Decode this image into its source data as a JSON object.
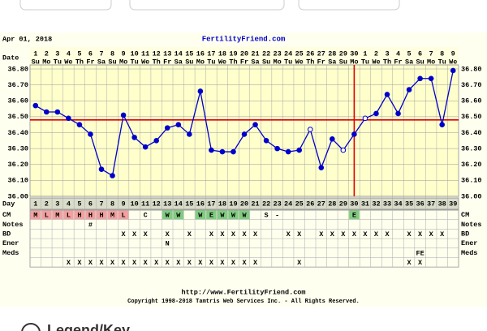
{
  "chart_data": {
    "type": "line",
    "title": "FertilityFriend.com",
    "start_date": "Apr 01, 2018",
    "date_label": "Date",
    "day_label": "Day",
    "dates": [
      1,
      2,
      3,
      4,
      5,
      6,
      7,
      8,
      9,
      10,
      11,
      12,
      13,
      14,
      15,
      16,
      17,
      18,
      19,
      20,
      21,
      22,
      23,
      24,
      25,
      26,
      27,
      28,
      29,
      30,
      1,
      2,
      3,
      4,
      5,
      6,
      7,
      8,
      9
    ],
    "weekdays": [
      "Su",
      "Mo",
      "Tu",
      "We",
      "Th",
      "Fr",
      "Sa",
      "Su",
      "Mo",
      "Tu",
      "We",
      "Th",
      "Fr",
      "Sa",
      "Su",
      "Mo",
      "Tu",
      "We",
      "Th",
      "Fr",
      "Sa",
      "Su",
      "Mo",
      "Tu",
      "We",
      "Th",
      "Fr",
      "Sa",
      "Su",
      "Mo",
      "Tu",
      "We",
      "Th",
      "Fr",
      "Sa",
      "Su",
      "Mo",
      "Tu",
      "We"
    ],
    "categories": [
      1,
      2,
      3,
      4,
      5,
      6,
      7,
      8,
      9,
      10,
      11,
      12,
      13,
      14,
      15,
      16,
      17,
      18,
      19,
      20,
      21,
      22,
      23,
      24,
      25,
      26,
      27,
      28,
      29,
      30,
      31,
      32,
      33,
      34,
      35,
      36,
      37,
      38,
      39
    ],
    "series": [
      {
        "color": "#0000cc",
        "values": [
          36.57,
          36.53,
          36.53,
          36.49,
          36.45,
          36.39,
          36.17,
          36.13,
          36.51,
          36.37,
          36.31,
          36.35,
          36.43,
          36.45,
          36.39,
          36.66,
          36.29,
          36.28,
          36.28,
          36.39,
          36.45,
          36.35,
          36.3,
          36.28,
          36.29,
          36.42,
          36.18,
          36.36,
          36.29,
          36.39,
          36.49,
          36.52,
          36.64,
          36.52,
          36.67,
          36.74,
          36.74,
          36.45,
          36.79
        ],
        "open_markers": [
          26,
          29,
          31
        ]
      }
    ],
    "ylim": [
      36.0,
      36.8
    ],
    "yticks": [
      {
        "value": 36.0,
        "label": "36.00"
      },
      {
        "value": 36.1,
        "label": "36.10"
      },
      {
        "value": 36.2,
        "label": "36.20"
      },
      {
        "value": 36.3,
        "label": "36.30"
      },
      {
        "value": 36.4,
        "label": "36.40"
      },
      {
        "value": 36.5,
        "label": "36.50"
      },
      {
        "value": 36.6,
        "label": "36.60"
      },
      {
        "value": 36.7,
        "label": "36.70"
      },
      {
        "value": 36.8,
        "label": "36.80"
      }
    ],
    "grid": true,
    "coverline": 36.48,
    "coverline_color": "#dd0000",
    "ovulation_day": 30,
    "rows": [
      {
        "label": "CM",
        "cells": [
          "M",
          "L",
          "M",
          "L",
          "H",
          "H",
          "H",
          "M",
          "L",
          null,
          "C",
          null,
          "W",
          "W",
          null,
          "W",
          "E",
          "W",
          "W",
          "W",
          null,
          "S",
          "-",
          null,
          null,
          null,
          null,
          null,
          null,
          "E",
          null,
          null,
          null,
          null,
          null,
          null,
          null,
          null,
          null
        ]
      },
      {
        "label": "Notes",
        "cells": [
          null,
          null,
          null,
          null,
          null,
          "#",
          null,
          null,
          null,
          null,
          null,
          null,
          null,
          null,
          null,
          null,
          null,
          null,
          null,
          null,
          null,
          null,
          null,
          null,
          null,
          null,
          null,
          null,
          null,
          null,
          null,
          null,
          null,
          null,
          null,
          null,
          null,
          null,
          null
        ]
      },
      {
        "label": "BD",
        "cells": [
          null,
          null,
          null,
          null,
          null,
          null,
          null,
          null,
          "X",
          "X",
          "X",
          null,
          "X",
          null,
          "X",
          null,
          "X",
          "X",
          "X",
          "X",
          "X",
          null,
          null,
          "X",
          "X",
          null,
          "X",
          "X",
          "X",
          "X",
          "X",
          "X",
          "X",
          null,
          "X",
          "X",
          "X",
          "X",
          null
        ]
      },
      {
        "label": "Ener",
        "cells": [
          null,
          null,
          null,
          null,
          null,
          null,
          null,
          null,
          null,
          null,
          null,
          null,
          "N",
          null,
          null,
          null,
          null,
          null,
          null,
          null,
          null,
          null,
          null,
          null,
          null,
          null,
          null,
          null,
          null,
          null,
          null,
          null,
          null,
          null,
          null,
          null,
          null,
          null,
          null
        ]
      },
      {
        "label": "Meds",
        "cells": [
          null,
          null,
          null,
          null,
          null,
          null,
          null,
          null,
          null,
          null,
          null,
          null,
          null,
          null,
          null,
          null,
          null,
          null,
          null,
          null,
          null,
          null,
          null,
          null,
          null,
          null,
          null,
          null,
          null,
          null,
          null,
          null,
          null,
          null,
          null,
          "FE",
          null,
          null,
          null
        ]
      },
      {
        "label": null,
        "cells": [
          null,
          null,
          null,
          "X",
          "X",
          "X",
          "X",
          "X",
          "X",
          "X",
          "X",
          "X",
          "X",
          "X",
          "X",
          "X",
          "X",
          "X",
          "X",
          "X",
          "X",
          null,
          null,
          null,
          "X",
          null,
          null,
          null,
          null,
          null,
          null,
          null,
          null,
          null,
          "X",
          "X",
          null,
          null,
          null
        ]
      }
    ],
    "cell_colors": {
      "H": "#f2a0a0",
      "M": "#f2a0a0",
      "L": "#f2a0a0",
      "W": "#80cc80",
      "E": "#80cc80"
    },
    "url": "http://www.FertilityFriend.com",
    "copyright": "Copyright 1998-2018 Tamtris Web Services Inc. - All Rights Reserved.",
    "legend_link": "Legend/Key"
  }
}
